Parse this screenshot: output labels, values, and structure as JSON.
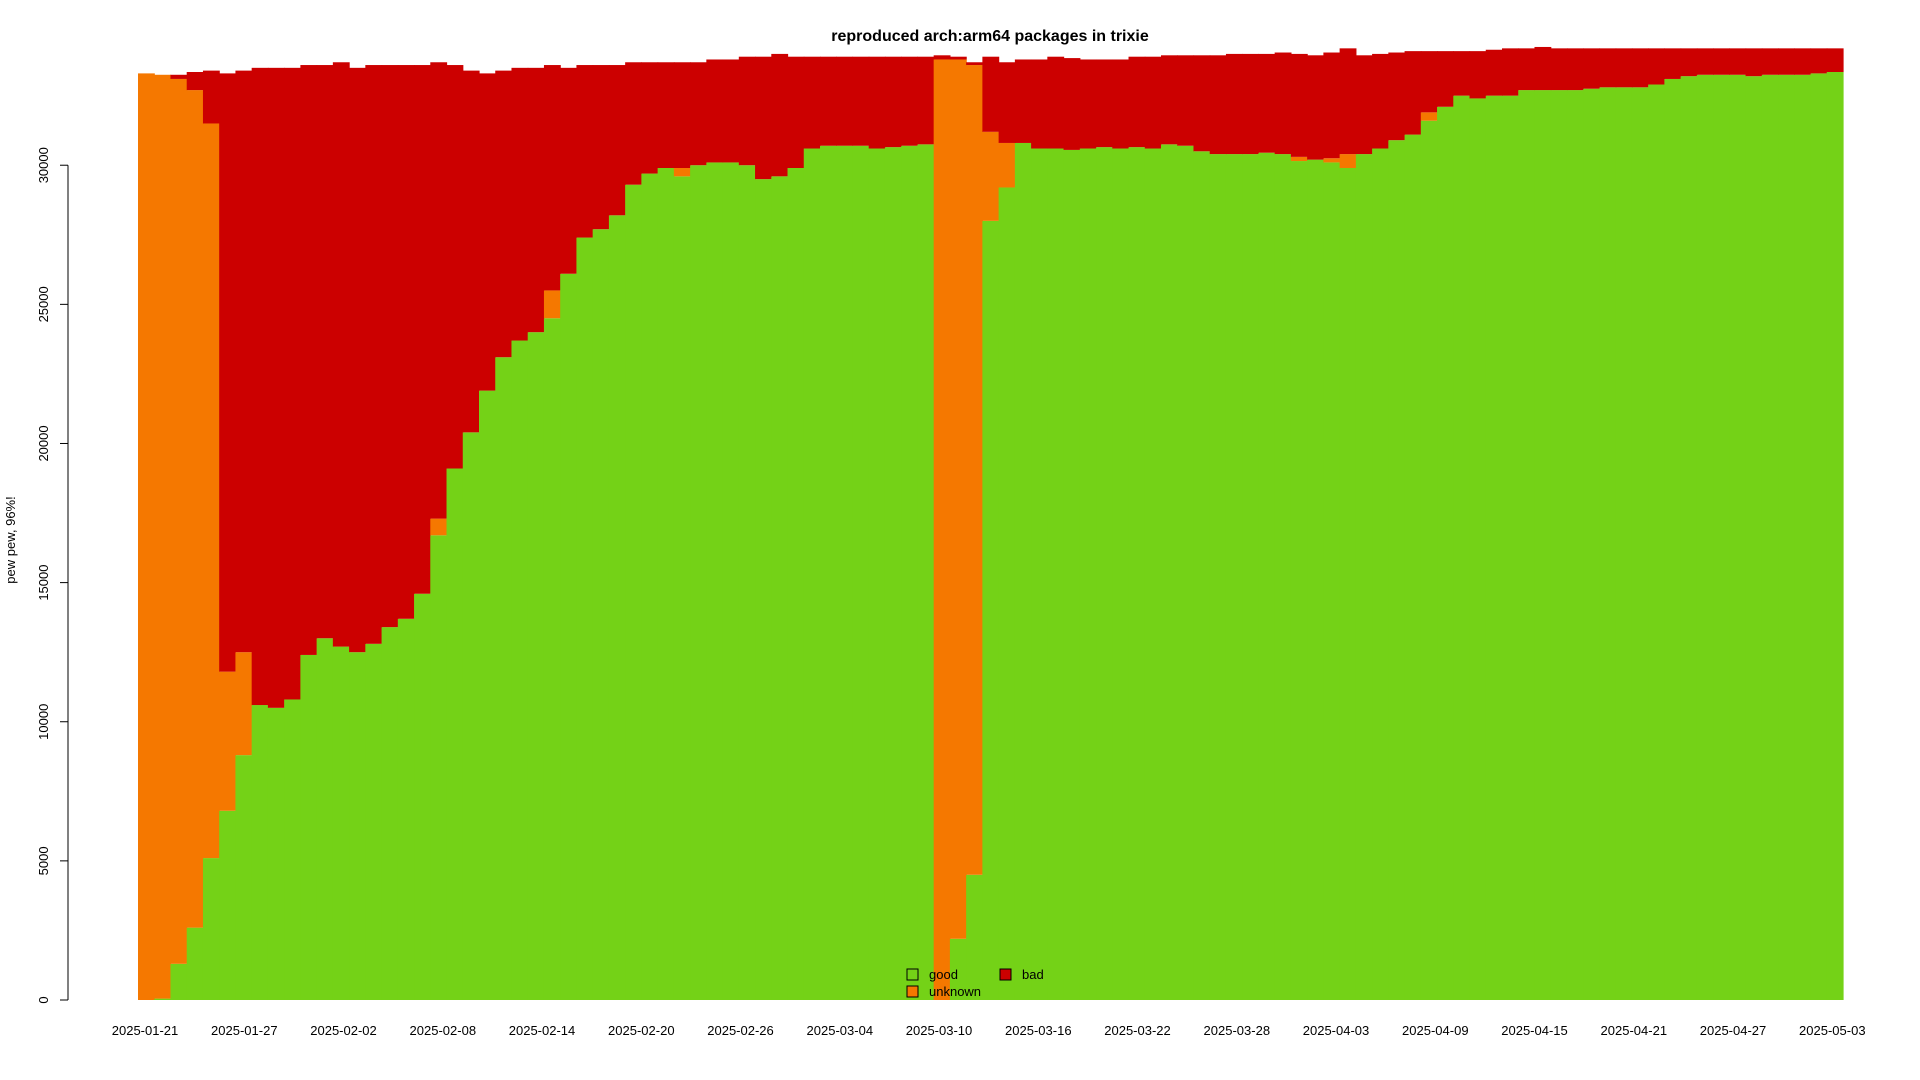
{
  "chart_data": {
    "type": "area",
    "title": "reproduced arch:arm64 packages in trixie",
    "xlabel": "",
    "ylabel": "pew pew, 96%!",
    "ylim": [
      0,
      34500
    ],
    "yticks": [
      0,
      5000,
      10000,
      15000,
      20000,
      25000,
      30000
    ],
    "ytick_labels": [
      "0",
      "5000",
      "10000",
      "15000",
      "20000",
      "25000",
      "30000"
    ],
    "xtick_labels": [
      "2025-01-21",
      "2025-01-27",
      "2025-02-02",
      "2025-02-08",
      "2025-02-14",
      "2025-02-20",
      "2025-02-26",
      "2025-03-04",
      "2025-03-10",
      "2025-03-16",
      "2025-03-22",
      "2025-03-28",
      "2025-04-03",
      "2025-04-09",
      "2025-04-15",
      "2025-04-21",
      "2025-04-27",
      "2025-05-03"
    ],
    "x_start": "2025-01-21",
    "x_interval_days": 1,
    "colors": {
      "good": "#74d217",
      "unknown": "#f57800",
      "bad": "#cc0000"
    },
    "legend": {
      "placement": "bottom-center",
      "entries": [
        {
          "label": "good",
          "color": "#74d217"
        },
        {
          "label": "unknown",
          "color": "#f57800"
        },
        {
          "label": "bad",
          "color": "#cc0000"
        }
      ]
    },
    "series": [
      {
        "name": "good",
        "values": [
          0,
          50,
          1300,
          2600,
          5100,
          6800,
          8800,
          10600,
          10500,
          10800,
          12400,
          13000,
          12700,
          12500,
          12800,
          13400,
          13700,
          14600,
          16700,
          19100,
          20400,
          21900,
          23100,
          23700,
          24000,
          24500,
          26100,
          27400,
          27700,
          28200,
          29300,
          29700,
          29900,
          29600,
          30000,
          30100,
          30100,
          30000,
          29500,
          29600,
          29900,
          30600,
          30700,
          30700,
          30700,
          30600,
          30650,
          30700,
          30750,
          0,
          2200,
          4500,
          28000,
          29200,
          30800,
          30600,
          30600,
          30550,
          30600,
          30650,
          30600,
          30650,
          30600,
          30750,
          30700,
          30500,
          30400,
          30400,
          30400,
          30450,
          30400,
          30150,
          30200,
          30100,
          29900,
          30400,
          30600,
          30900,
          31100,
          31600,
          32100,
          32500,
          32400,
          32500,
          32500,
          32700,
          32700,
          32700,
          32700,
          32750,
          32800,
          32800,
          32800,
          32900,
          33100,
          33200,
          33250,
          33250,
          33250,
          33200,
          33250,
          33250,
          33250,
          33300,
          33350
        ]
      },
      {
        "name": "unknown",
        "values": [
          33300,
          33200,
          31800,
          30100,
          26400,
          5000,
          3700,
          0,
          0,
          0,
          0,
          0,
          0,
          0,
          0,
          0,
          0,
          0,
          600,
          0,
          0,
          0,
          0,
          0,
          0,
          1000,
          0,
          0,
          0,
          0,
          0,
          0,
          0,
          300,
          0,
          0,
          0,
          0,
          0,
          0,
          0,
          0,
          0,
          0,
          0,
          0,
          0,
          0,
          0,
          33800,
          31600,
          29100,
          3200,
          1600,
          0,
          0,
          0,
          0,
          0,
          0,
          0,
          0,
          0,
          0,
          0,
          0,
          0,
          0,
          0,
          0,
          0,
          150,
          0,
          150,
          500,
          0,
          0,
          0,
          0,
          300,
          0,
          0,
          0,
          0,
          0,
          0,
          0,
          0,
          0,
          0,
          0,
          0,
          0,
          0,
          0,
          0,
          0,
          0,
          0,
          0,
          0,
          0,
          0,
          0,
          0
        ]
      },
      {
        "name": "bad",
        "values": [
          0,
          0,
          150,
          650,
          1900,
          21500,
          20900,
          22900,
          23000,
          22700,
          21200,
          20600,
          21000,
          21000,
          20800,
          20200,
          19900,
          19000,
          16400,
          14500,
          13000,
          11400,
          10300,
          9800,
          9500,
          8100,
          7400,
          6200,
          5900,
          5400,
          4400,
          4000,
          3800,
          3800,
          3700,
          3700,
          3700,
          3900,
          4400,
          4400,
          4000,
          3300,
          3200,
          3200,
          3200,
          3300,
          3250,
          3200,
          3150,
          150,
          100,
          100,
          2700,
          2900,
          3000,
          3200,
          3300,
          3300,
          3200,
          3150,
          3200,
          3250,
          3300,
          3200,
          3250,
          3450,
          3550,
          3600,
          3600,
          3550,
          3650,
          3700,
          3750,
          3800,
          3800,
          3550,
          3400,
          3150,
          3000,
          2200,
          2000,
          1600,
          1700,
          1650,
          1700,
          1500,
          1550,
          1500,
          1500,
          1450,
          1400,
          1400,
          1400,
          1300,
          1100,
          1000,
          950,
          950,
          950,
          1000,
          950,
          950,
          950,
          900,
          850
        ]
      }
    ]
  }
}
